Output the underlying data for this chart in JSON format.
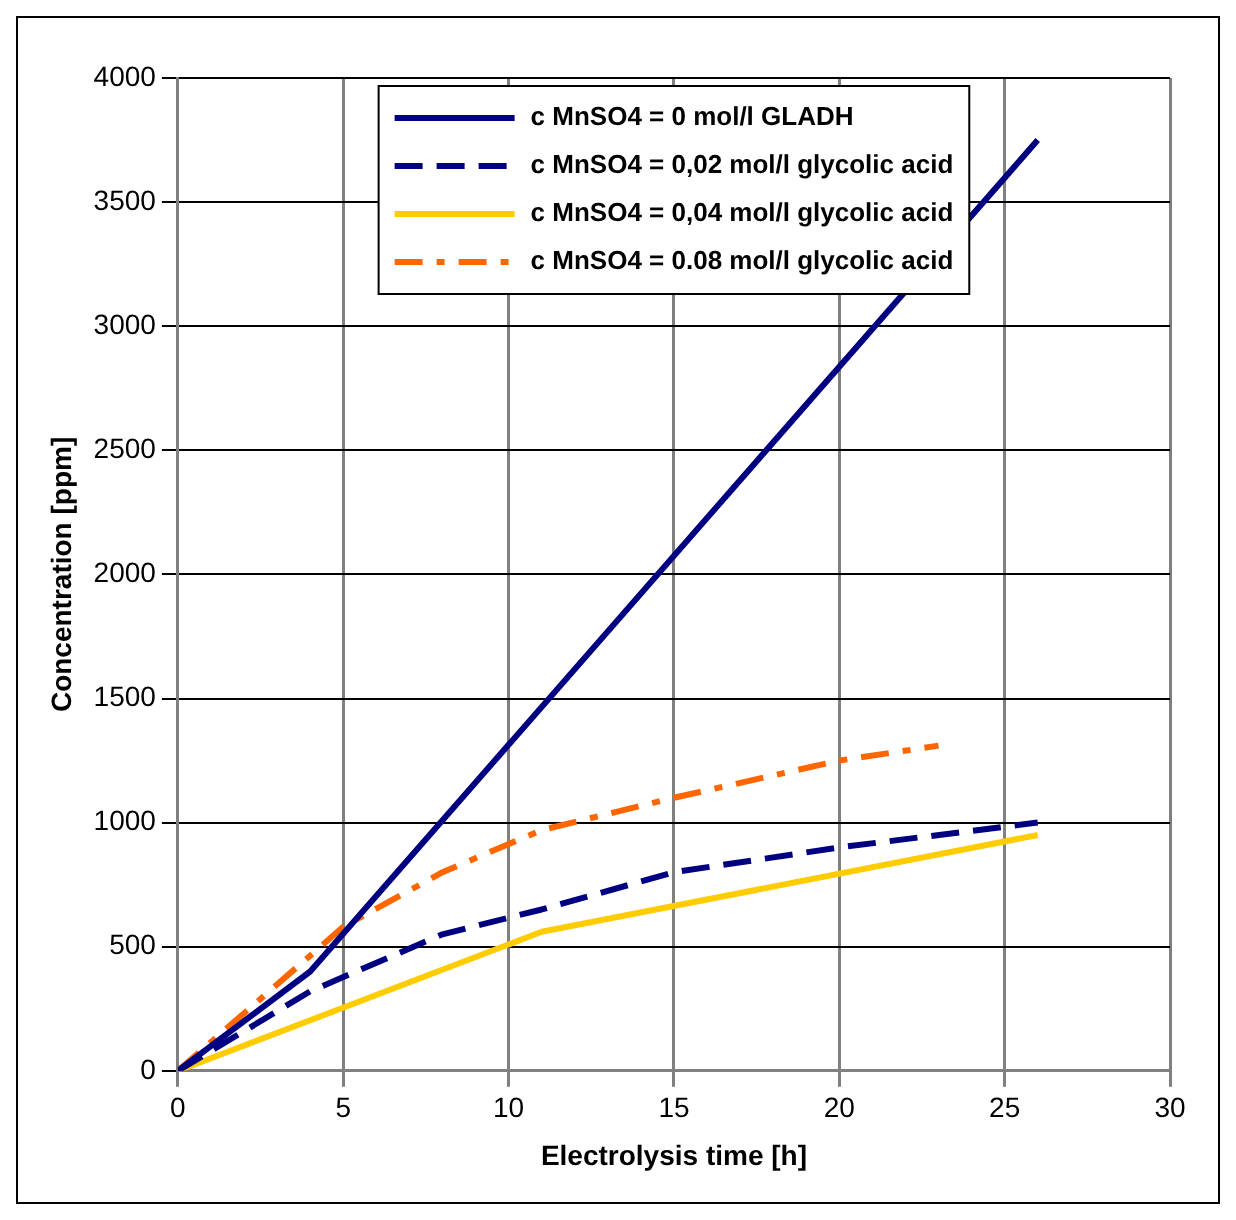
{
  "chart_data": {
    "type": "line",
    "xlabel": "Electrolysis time [h]",
    "ylabel": "Concentration [ppm]",
    "xlim": [
      0,
      30
    ],
    "xticks": [
      0,
      5,
      10,
      15,
      20,
      25,
      30
    ],
    "ylim": [
      0,
      4000
    ],
    "yticks": [
      0,
      500,
      1000,
      1500,
      2000,
      2500,
      3000,
      3500,
      4000
    ],
    "grid": true,
    "legend": "top",
    "marker": "none",
    "series": [
      {
        "name": "c MnSO4 = 0 mol/l GLADH",
        "color": "#000080",
        "line_style": "solid",
        "x": [
          0,
          4,
          26
        ],
        "values": [
          0,
          400,
          3750
        ]
      },
      {
        "name": "c MnSO4 = 0,02 mol/l glycolic acid",
        "color": "#000080",
        "line_style": "dashed",
        "x": [
          0,
          4,
          8,
          11,
          15,
          20,
          26
        ],
        "values": [
          0,
          320,
          550,
          650,
          800,
          900,
          1000
        ]
      },
      {
        "name": "c MnSO4 = 0,04 mol/l glycolic acid",
        "color": "#ffcc00",
        "line_style": "solid",
        "x": [
          0,
          11,
          26
        ],
        "values": [
          0,
          560,
          950
        ]
      },
      {
        "name": "c MnSO4 = 0.08 mol/l glycolic acid",
        "color": "#ff6600",
        "line_style": "dashed",
        "x": [
          0,
          5,
          8,
          11,
          15,
          20,
          23
        ],
        "values": [
          0,
          580,
          800,
          970,
          1100,
          1250,
          1310
        ]
      }
    ]
  }
}
